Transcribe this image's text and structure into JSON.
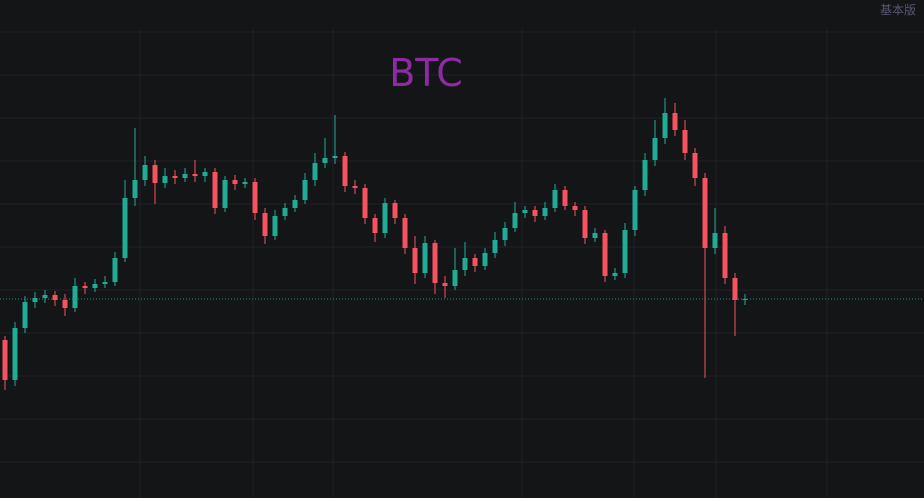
{
  "corner_label": "基本版",
  "chart_data": {
    "type": "candlestick",
    "title": "BTC",
    "up_color": "#22ab94",
    "down_color": "#f7525f",
    "ylim": [
      0,
      498
    ],
    "open": [
      158,
      118,
      170,
      196,
      200,
      203,
      198,
      190,
      212,
      210,
      214,
      216,
      240,
      300,
      318,
      333,
      315,
      322,
      320,
      324,
      322,
      326,
      290,
      318,
      314,
      316,
      285,
      262,
      282,
      290,
      298,
      318,
      335,
      340,
      342,
      312,
      310,
      280,
      265,
      295,
      280,
      250,
      225,
      255,
      215,
      212,
      228,
      240,
      232,
      245,
      258,
      270,
      285,
      288,
      282,
      290,
      308,
      292,
      288,
      260,
      265,
      222,
      225,
      268,
      308,
      338,
      360,
      385,
      368,
      345,
      320,
      250,
      265,
      220,
      198
    ],
    "high": [
      162,
      176,
      202,
      206,
      208,
      207,
      204,
      220,
      216,
      219,
      222,
      246,
      318,
      370,
      342,
      338,
      330,
      328,
      330,
      338,
      330,
      330,
      322,
      323,
      320,
      320,
      290,
      288,
      295,
      303,
      325,
      345,
      360,
      383,
      346,
      318,
      314,
      284,
      300,
      298,
      284,
      262,
      262,
      258,
      222,
      250,
      256,
      244,
      250,
      266,
      276,
      296,
      292,
      292,
      296,
      314,
      312,
      296,
      292,
      270,
      268,
      230,
      275,
      312,
      345,
      378,
      400,
      395,
      378,
      350,
      325,
      290,
      272,
      225,
      204
    ],
    "low": [
      108,
      112,
      165,
      190,
      195,
      192,
      182,
      186,
      204,
      206,
      210,
      212,
      236,
      292,
      312,
      294,
      310,
      314,
      316,
      316,
      316,
      284,
      286,
      308,
      310,
      278,
      254,
      258,
      278,
      286,
      294,
      312,
      330,
      334,
      306,
      304,
      274,
      256,
      260,
      274,
      244,
      214,
      220,
      204,
      200,
      208,
      222,
      226,
      228,
      240,
      252,
      266,
      280,
      276,
      278,
      286,
      288,
      282,
      254,
      256,
      216,
      218,
      220,
      262,
      302,
      332,
      354,
      362,
      338,
      312,
      120,
      244,
      214,
      162,
      193
    ],
    "close": [
      118,
      170,
      196,
      200,
      203,
      198,
      190,
      212,
      210,
      214,
      216,
      240,
      300,
      318,
      333,
      315,
      322,
      320,
      324,
      322,
      326,
      290,
      318,
      314,
      316,
      285,
      262,
      282,
      290,
      298,
      318,
      335,
      340,
      342,
      312,
      310,
      280,
      265,
      295,
      280,
      250,
      225,
      255,
      215,
      212,
      228,
      240,
      232,
      245,
      258,
      270,
      285,
      288,
      282,
      290,
      308,
      292,
      288,
      260,
      265,
      222,
      225,
      268,
      308,
      338,
      360,
      385,
      368,
      345,
      320,
      250,
      265,
      220,
      198,
      199
    ]
  }
}
